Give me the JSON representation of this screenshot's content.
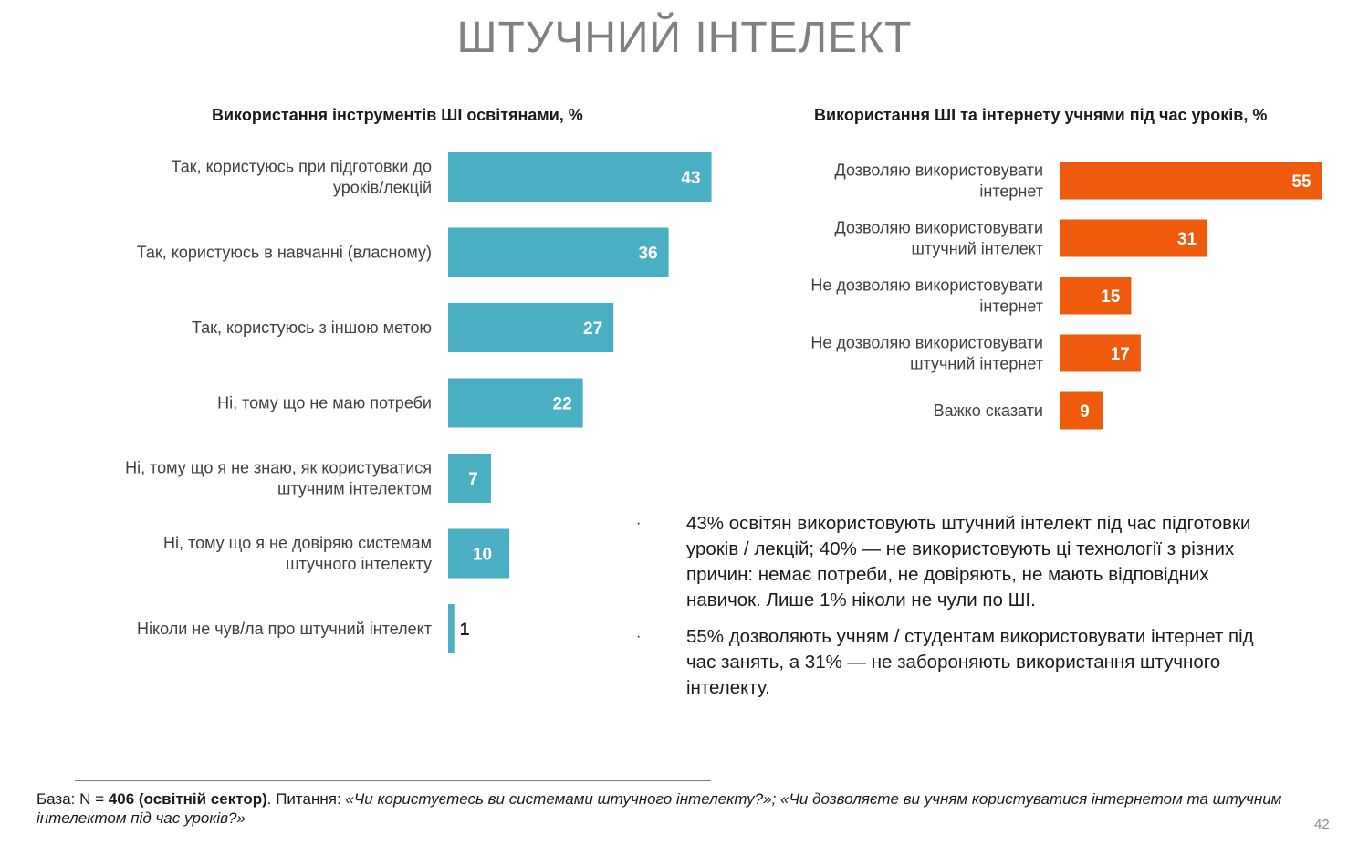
{
  "page": {
    "title": "ШТУЧНИЙ ІНТЕЛЕКТ",
    "page_number": "42"
  },
  "colors": {
    "left_bars": "#4BAFC4",
    "right_bars": "#EF5A0D",
    "title_gray": "#808080"
  },
  "chart_data": [
    {
      "type": "bar",
      "orientation": "horizontal",
      "title": "Використання інструментів ШІ освітянами, %",
      "categories": [
        [
          "Так, користуюсь при підготовки до",
          "уроків/лекцій"
        ],
        [
          "Так, користуюсь в навчанні (власному)"
        ],
        [
          "Так, користуюсь з іншою метою"
        ],
        [
          "Ні, тому що не маю потреби"
        ],
        [
          "Ні, тому що я не знаю, як користуватися",
          "штучним інтелектом"
        ],
        [
          "Ні, тому що я не довіряю системам",
          "штучного інтелекту"
        ],
        [
          "Ніколи не чув/ла про штучний інтелект"
        ]
      ],
      "values": [
        43,
        36,
        27,
        22,
        7,
        10,
        1
      ],
      "value_labels": [
        "43",
        "36",
        "27",
        "22",
        "7",
        "10",
        "1"
      ],
      "color": "#4BAFC4",
      "xlim": [
        0,
        45
      ],
      "grid": false,
      "legend": "none"
    },
    {
      "type": "bar",
      "orientation": "horizontal",
      "title": "Використання ШІ та інтернету учнями під час уроків, %",
      "categories": [
        [
          "Дозволяю використовувати",
          "інтернет"
        ],
        [
          "Дозволяю використовувати",
          "штучний інтелект"
        ],
        [
          "Не дозволяю використовувати",
          "інтернет"
        ],
        [
          "Не дозволяю використовувати",
          "штучний інтернет"
        ],
        [
          "Важко сказати"
        ]
      ],
      "values": [
        55,
        31,
        15,
        17,
        9
      ],
      "value_labels": [
        "55",
        "31",
        "15",
        "17",
        "9"
      ],
      "color": "#EF5A0D",
      "xlim": [
        0,
        57
      ],
      "grid": false,
      "legend": "none"
    }
  ],
  "bullets": [
    "43% освітян використовують штучний інтелект під час підготовки уроків / лекцій; 40% — не використовують ці технології з різних причин: немає потреби, не довіряють, не мають відповідних навичок. Лише 1% ніколи не чули по ШІ.",
    "55% дозволяють учням / студентам використовувати інтернет під час занять, а 31% — не забороняють використання штучного інтелекту."
  ],
  "bullet_marker": "·",
  "footnote": {
    "base_prefix": "База: N = ",
    "base_bold": "406 (освітній сектор)",
    "question_prefix": ". Питання: ",
    "question_italic": "«Чи користуєтесь ви системами штучного інтелекту?»; «Чи дозволяєте ви учням користуватися інтернетом та штучним інтелектом під час уроків?»"
  }
}
